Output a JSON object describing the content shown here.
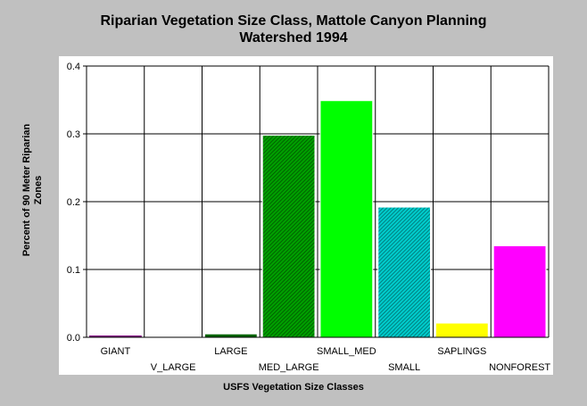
{
  "chart_data": {
    "type": "bar",
    "title": [
      "Riparian Vegetation Size Class, Mattole Canyon Planning",
      "Watershed 1994"
    ],
    "xlabel": "USFS Vegetation Size Classes",
    "ylabel": [
      "Percent of 90 Meter Riparian",
      "Zones"
    ],
    "categories": [
      "GIANT",
      "V_LARGE",
      "LARGE",
      "MED_LARGE",
      "SMALL_MED",
      "SMALL",
      "SAPLINGS",
      "NONFOREST"
    ],
    "values": [
      0.002,
      0.0,
      0.005,
      0.298,
      0.349,
      0.192,
      0.021,
      0.135
    ],
    "colors": [
      "#800080",
      "#006400",
      "#006400",
      "#007800",
      "#00ff00",
      "#009999",
      "#ffff00",
      "#ff00ff"
    ],
    "patterns": [
      "solid",
      "solid",
      "solid",
      "hatch",
      "solid",
      "hatch",
      "solid",
      "solid"
    ],
    "ylim": [
      0,
      0.4
    ],
    "yticks": [
      "0.0",
      "0.1",
      "0.2",
      "0.3",
      "0.4"
    ],
    "grid": true,
    "legend": "none"
  }
}
